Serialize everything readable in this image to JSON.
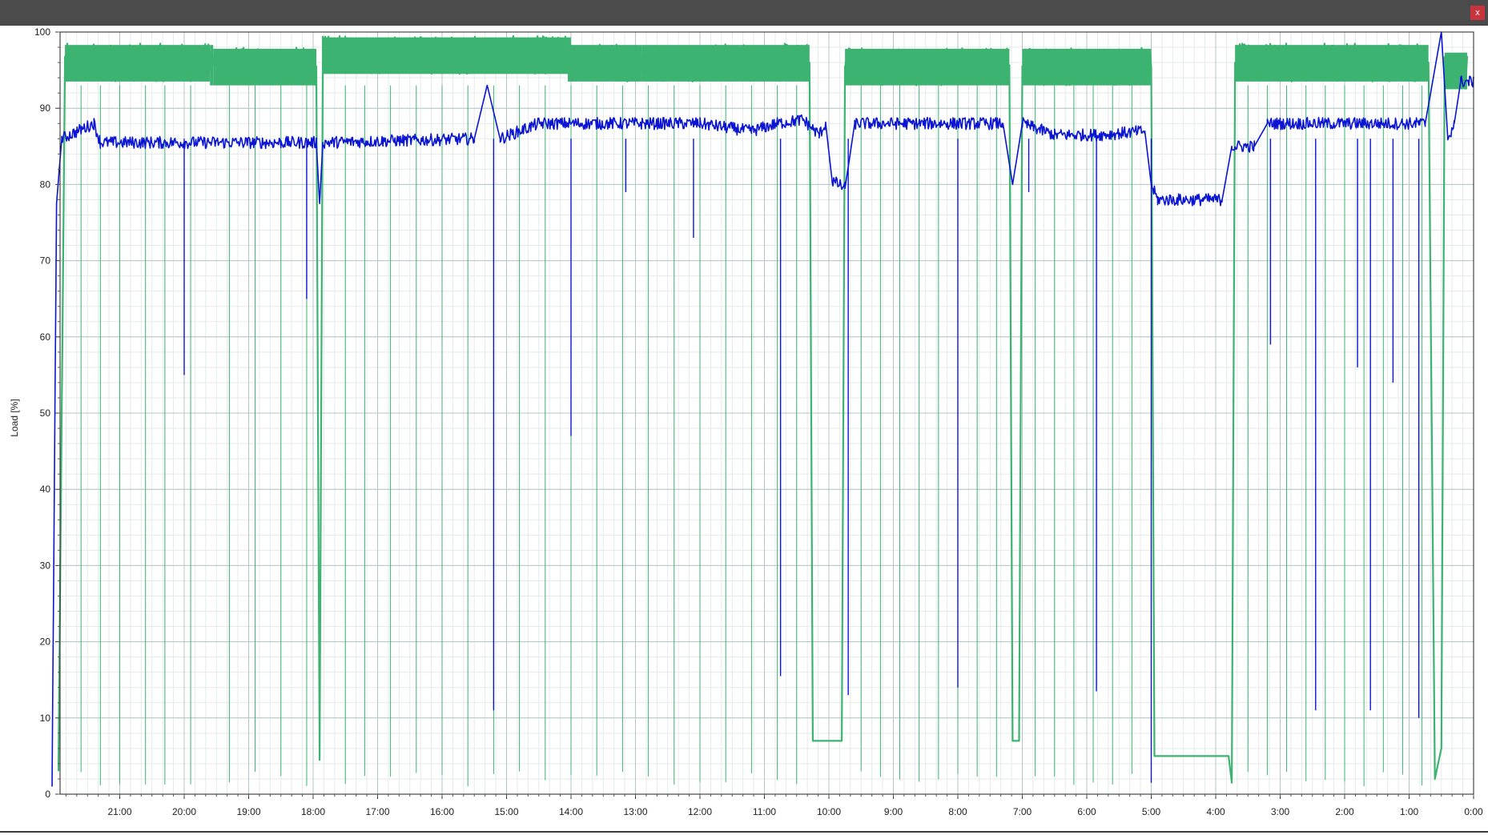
{
  "window": {
    "close_label": "x"
  },
  "colors": {
    "titlebar": "#4b4b4b",
    "close": "#c8343c",
    "series_green": "#3cb371",
    "series_blue": "#0a14d2",
    "grid_major": "#b4c4c4",
    "grid_minor": "#e4eaea"
  },
  "chart_data": {
    "type": "line",
    "ylabel": "Load [%]",
    "xlabel": "",
    "ylim": [
      0,
      100
    ],
    "y_ticks": [
      "0",
      "10",
      "20",
      "30",
      "40",
      "50",
      "60",
      "70",
      "80",
      "90",
      "100"
    ],
    "x_axis_direction": "reversed (newest on the right)",
    "x_ticks": [
      "21:00",
      "20:00",
      "19:00",
      "18:00",
      "17:00",
      "16:00",
      "15:00",
      "14:00",
      "13:00",
      "12:00",
      "11:00",
      "10:00",
      "9:00",
      "8:00",
      "7:00",
      "6:00",
      "5:00",
      "4:00",
      "3:00",
      "2:00",
      "1:00",
      "0:00"
    ],
    "grid": true,
    "legend": "none",
    "series": [
      {
        "color": "#3cb371",
        "description_points_hours_before_0": [
          [
            21.95,
            3
          ],
          [
            21.85,
            96
          ],
          [
            19.6,
            96
          ],
          [
            19.55,
            95.5
          ],
          [
            17.95,
            95.5
          ],
          [
            17.9,
            4.5
          ],
          [
            17.85,
            97
          ],
          [
            14.05,
            97
          ],
          [
            14.0,
            96
          ],
          [
            12.95,
            96
          ],
          [
            12.9,
            96
          ],
          [
            10.3,
            96
          ],
          [
            10.25,
            7
          ],
          [
            9.8,
            7
          ],
          [
            9.75,
            95.5
          ],
          [
            7.2,
            95.5
          ],
          [
            7.15,
            7
          ],
          [
            7.05,
            7
          ],
          [
            7.0,
            95.5
          ],
          [
            5.0,
            95.5
          ],
          [
            4.95,
            5
          ],
          [
            3.8,
            5
          ],
          [
            3.75,
            1.5
          ],
          [
            3.7,
            96
          ],
          [
            0.7,
            96
          ],
          [
            0.6,
            2
          ],
          [
            0.5,
            6
          ],
          [
            0.45,
            95
          ],
          [
            0.1,
            95
          ]
        ],
        "dropouts_hours_before_0": [
          21.6,
          21.3,
          21.0,
          20.6,
          20.3,
          19.9,
          19.3,
          18.9,
          18.5,
          18.1,
          17.5,
          17.2,
          16.8,
          16.4,
          16.0,
          15.6,
          15.2,
          14.8,
          14.4,
          14.0,
          13.6,
          13.2,
          12.8,
          12.4,
          12.0,
          11.6,
          11.2,
          10.8,
          10.5,
          9.5,
          9.2,
          8.9,
          8.6,
          8.3,
          8.0,
          7.7,
          7.4,
          6.8,
          6.5,
          6.2,
          5.9,
          5.6,
          5.3,
          3.5,
          3.2,
          2.9,
          2.6,
          2.3,
          2.0,
          1.7,
          1.4,
          1.1,
          0.8
        ]
      },
      {
        "color": "#0a14d2",
        "description_points_hours_before_0": [
          [
            22.05,
            1
          ],
          [
            21.98,
            77.5
          ],
          [
            21.9,
            86
          ],
          [
            21.4,
            88
          ],
          [
            21.3,
            85.5
          ],
          [
            18.5,
            85.5
          ],
          [
            17.95,
            85.5
          ],
          [
            17.9,
            77.5
          ],
          [
            17.85,
            85.5
          ],
          [
            15.5,
            86
          ],
          [
            15.3,
            93
          ],
          [
            15.1,
            86
          ],
          [
            14.5,
            88
          ],
          [
            12.0,
            88
          ],
          [
            11.2,
            87
          ],
          [
            10.8,
            88
          ],
          [
            10.4,
            88.5
          ],
          [
            10.15,
            86.5
          ],
          [
            10.05,
            88
          ],
          [
            9.95,
            80.5
          ],
          [
            9.75,
            79.5
          ],
          [
            9.6,
            88
          ],
          [
            8.0,
            88
          ],
          [
            7.3,
            88
          ],
          [
            7.15,
            80
          ],
          [
            7.0,
            88
          ],
          [
            6.5,
            86.5
          ],
          [
            5.8,
            86.5
          ],
          [
            5.1,
            87
          ],
          [
            5.0,
            80
          ],
          [
            4.9,
            78
          ],
          [
            4.2,
            78
          ],
          [
            3.9,
            78
          ],
          [
            3.75,
            85
          ],
          [
            3.4,
            85
          ],
          [
            3.2,
            88
          ],
          [
            0.85,
            88
          ],
          [
            0.75,
            88
          ],
          [
            0.5,
            100
          ],
          [
            0.4,
            86
          ],
          [
            0.3,
            88
          ],
          [
            0.2,
            93.5
          ],
          [
            0.0,
            93.5
          ]
        ],
        "dropouts_hours_before_0": [
          [
            20.0,
            55
          ],
          [
            18.1,
            65
          ],
          [
            15.2,
            11
          ],
          [
            14.0,
            47
          ],
          [
            13.15,
            79
          ],
          [
            12.1,
            73
          ],
          [
            10.75,
            15.5
          ],
          [
            9.7,
            13
          ],
          [
            8.0,
            14
          ],
          [
            6.9,
            79
          ],
          [
            5.85,
            13.5
          ],
          [
            5.0,
            1.5
          ],
          [
            3.15,
            59
          ],
          [
            2.45,
            11
          ],
          [
            1.8,
            56
          ],
          [
            1.6,
            11
          ],
          [
            1.25,
            54
          ],
          [
            0.85,
            10
          ]
        ]
      }
    ]
  }
}
